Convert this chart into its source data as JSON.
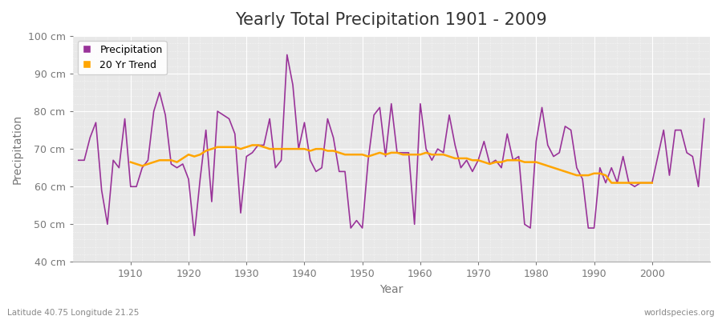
{
  "title": "Yearly Total Precipitation 1901 - 2009",
  "xlabel": "Year",
  "ylabel": "Precipitation",
  "subtitle_left": "Latitude 40.75 Longitude 21.25",
  "subtitle_right": "worldspecies.org",
  "ylim": [
    40,
    100
  ],
  "ytick_labels": [
    "40 cm",
    "50 cm",
    "60 cm",
    "70 cm",
    "80 cm",
    "90 cm",
    "100 cm"
  ],
  "ytick_values": [
    40,
    50,
    60,
    70,
    80,
    90,
    100
  ],
  "years": [
    1901,
    1902,
    1903,
    1904,
    1905,
    1906,
    1907,
    1908,
    1909,
    1910,
    1911,
    1912,
    1913,
    1914,
    1915,
    1916,
    1917,
    1918,
    1919,
    1920,
    1921,
    1922,
    1923,
    1924,
    1925,
    1926,
    1927,
    1928,
    1929,
    1930,
    1931,
    1932,
    1933,
    1934,
    1935,
    1936,
    1937,
    1938,
    1939,
    1940,
    1941,
    1942,
    1943,
    1944,
    1945,
    1946,
    1947,
    1948,
    1949,
    1950,
    1951,
    1952,
    1953,
    1954,
    1955,
    1956,
    1957,
    1958,
    1959,
    1960,
    1961,
    1962,
    1963,
    1964,
    1965,
    1966,
    1967,
    1968,
    1969,
    1970,
    1971,
    1972,
    1973,
    1974,
    1975,
    1976,
    1977,
    1978,
    1979,
    1980,
    1981,
    1982,
    1983,
    1984,
    1985,
    1986,
    1987,
    1988,
    1989,
    1990,
    1991,
    1992,
    1993,
    1994,
    1995,
    1996,
    1997,
    1998,
    1999,
    2000,
    2001,
    2002,
    2003,
    2004,
    2005,
    2006,
    2007,
    2008,
    2009
  ],
  "precipitation": [
    67,
    67,
    73,
    77,
    59,
    50,
    67,
    65,
    78,
    60,
    60,
    65,
    67,
    80,
    85,
    79,
    66,
    65,
    66,
    62,
    47,
    62,
    75,
    56,
    80,
    79,
    78,
    74,
    53,
    68,
    69,
    71,
    71,
    78,
    65,
    67,
    95,
    87,
    70,
    77,
    67,
    64,
    65,
    78,
    73,
    64,
    64,
    49,
    51,
    49,
    67,
    79,
    81,
    68,
    82,
    69,
    69,
    69,
    50,
    82,
    70,
    67,
    70,
    69,
    79,
    71,
    65,
    67,
    64,
    67,
    72,
    66,
    67,
    65,
    74,
    67,
    68,
    50,
    49,
    72,
    81,
    71,
    68,
    69,
    76,
    75,
    65,
    62,
    49,
    49,
    65,
    61,
    65,
    61,
    68,
    61,
    60,
    61,
    61,
    61,
    68,
    75,
    63,
    75,
    75,
    69,
    68,
    60,
    78
  ],
  "trend": [
    null,
    null,
    null,
    null,
    null,
    null,
    null,
    null,
    null,
    66.5,
    66.0,
    65.5,
    66.0,
    66.5,
    67.0,
    67.0,
    67.0,
    66.5,
    67.5,
    68.5,
    68.0,
    68.5,
    69.5,
    70.0,
    70.5,
    70.5,
    70.5,
    70.5,
    70.0,
    70.5,
    71.0,
    71.0,
    70.5,
    70.0,
    70.0,
    70.0,
    70.0,
    70.0,
    70.0,
    70.0,
    69.5,
    70.0,
    70.0,
    69.5,
    69.5,
    69.0,
    68.5,
    68.5,
    68.5,
    68.5,
    68.0,
    68.5,
    69.0,
    68.5,
    69.0,
    69.0,
    68.5,
    68.5,
    68.5,
    68.5,
    69.0,
    68.5,
    68.5,
    68.5,
    68.0,
    67.5,
    67.5,
    67.5,
    67.0,
    67.0,
    66.5,
    66.0,
    66.5,
    66.5,
    67.0,
    67.0,
    67.0,
    66.5,
    66.5,
    66.5,
    66.0,
    65.5,
    65.0,
    64.5,
    64.0,
    63.5,
    63.0,
    63.0,
    63.0,
    63.5,
    63.5,
    63.0,
    61.0,
    61.0,
    61.0,
    61.0,
    61.0,
    61.0,
    61.0,
    61.0,
    null,
    null,
    null,
    null,
    null,
    null,
    null,
    null,
    null
  ],
  "precip_color": "#993399",
  "trend_color": "#FFA500",
  "bg_color": "#ffffff",
  "plot_bg_color": "#e8e8e8",
  "grid_color_major": "#cccccc",
  "grid_color_minor": "#dddddd",
  "title_fontsize": 15,
  "label_fontsize": 10,
  "tick_fontsize": 9,
  "xticks": [
    1910,
    1920,
    1930,
    1940,
    1950,
    1960,
    1970,
    1980,
    1990,
    2000
  ]
}
